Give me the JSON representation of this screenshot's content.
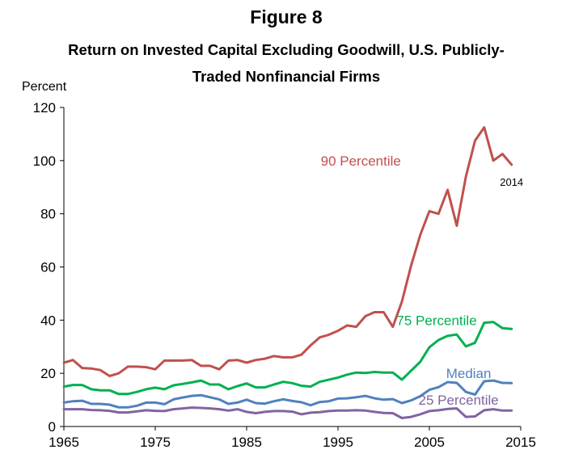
{
  "chart_data": {
    "type": "line",
    "figure_label": "Figure 8",
    "title_lines": [
      "Return on Invested Capital Excluding Goodwill, U.S. Publicly-",
      "Traded Nonfinancial Firms"
    ],
    "ylabel": "Percent",
    "xlim": [
      1965,
      2015
    ],
    "ylim": [
      0,
      120
    ],
    "x_ticks": [
      1965,
      1975,
      1985,
      1995,
      2005,
      2015
    ],
    "y_ticks": [
      0,
      20,
      40,
      60,
      80,
      100,
      120
    ],
    "grid": false,
    "x": [
      1965,
      1966,
      1967,
      1968,
      1969,
      1970,
      1971,
      1972,
      1973,
      1974,
      1975,
      1976,
      1977,
      1978,
      1979,
      1980,
      1981,
      1982,
      1983,
      1984,
      1985,
      1986,
      1987,
      1988,
      1989,
      1990,
      1991,
      1992,
      1993,
      1994,
      1995,
      1996,
      1997,
      1998,
      1999,
      2000,
      2001,
      2002,
      2003,
      2004,
      2005,
      2006,
      2007,
      2008,
      2009,
      2010,
      2011,
      2012,
      2013,
      2014
    ],
    "series": [
      {
        "name": "90 Percentile",
        "color": "#c0504d",
        "values": [
          24,
          25,
          22,
          21.8,
          21.2,
          19,
          20,
          22.5,
          22.5,
          22.3,
          21.5,
          24.8,
          24.8,
          24.8,
          25,
          22.8,
          22.8,
          21.5,
          24.8,
          25,
          24,
          25,
          25.5,
          26.5,
          26,
          26,
          27,
          30.5,
          33.5,
          34.5,
          36,
          38,
          37.5,
          41.5,
          43,
          43,
          37.5,
          47,
          60.5,
          72,
          81,
          80,
          89,
          75.5,
          94,
          107.5,
          112.5,
          100,
          102.5,
          98.5
        ]
      },
      {
        "name": "75 Percentile",
        "color": "#00b050",
        "values": [
          15,
          15.6,
          15.6,
          14,
          13.6,
          13.6,
          12.2,
          12.2,
          13,
          14,
          14.6,
          14,
          15.5,
          16,
          16.6,
          17.3,
          15.8,
          15.8,
          14,
          15.2,
          16.2,
          14.7,
          14.7,
          15.8,
          16.8,
          16.3,
          15.3,
          15,
          16.8,
          17.6,
          18.4,
          19.5,
          20.3,
          20.1,
          20.5,
          20.3,
          20.3,
          17.6,
          21,
          24.3,
          29.8,
          32.5,
          34.1,
          34.6,
          30.1,
          31.5,
          39,
          39.3,
          37,
          36.7
        ]
      },
      {
        "name": "Median",
        "color": "#4f81bd",
        "values": [
          9,
          9.5,
          9.7,
          8.5,
          8.5,
          8.2,
          7.2,
          7.2,
          7.8,
          9,
          9,
          8.4,
          10.2,
          10.9,
          11.5,
          11.8,
          11,
          10.2,
          8.5,
          9,
          10.1,
          8.8,
          8.6,
          9.5,
          10.2,
          9.6,
          9.1,
          8,
          9.2,
          9.5,
          10.5,
          10.6,
          11,
          11.5,
          10.6,
          10.1,
          10.3,
          8.8,
          9.8,
          11.4,
          13.8,
          14.8,
          16.7,
          16.4,
          13,
          12,
          17,
          17.3,
          16.4,
          16.3
        ]
      },
      {
        "name": "25 Percentile",
        "color": "#8064a2",
        "values": [
          6.5,
          6.5,
          6.5,
          6.2,
          6.1,
          5.9,
          5.3,
          5.3,
          5.7,
          6.1,
          5.9,
          5.8,
          6.5,
          6.8,
          7.1,
          7,
          6.8,
          6.5,
          6,
          6.5,
          5.5,
          5,
          5.5,
          5.8,
          5.8,
          5.6,
          4.6,
          5.2,
          5.4,
          5.8,
          6,
          6,
          6.1,
          6,
          5.5,
          5.1,
          5,
          3.2,
          3.6,
          4.6,
          5.8,
          6.1,
          6.6,
          6.8,
          3.6,
          3.8,
          6.1,
          6.5,
          6,
          6
        ]
      }
    ],
    "series_label_y": [
      100,
      40,
      20,
      10
    ],
    "annotations": [
      {
        "text": "2014",
        "x": 2014,
        "y": 92
      }
    ]
  }
}
